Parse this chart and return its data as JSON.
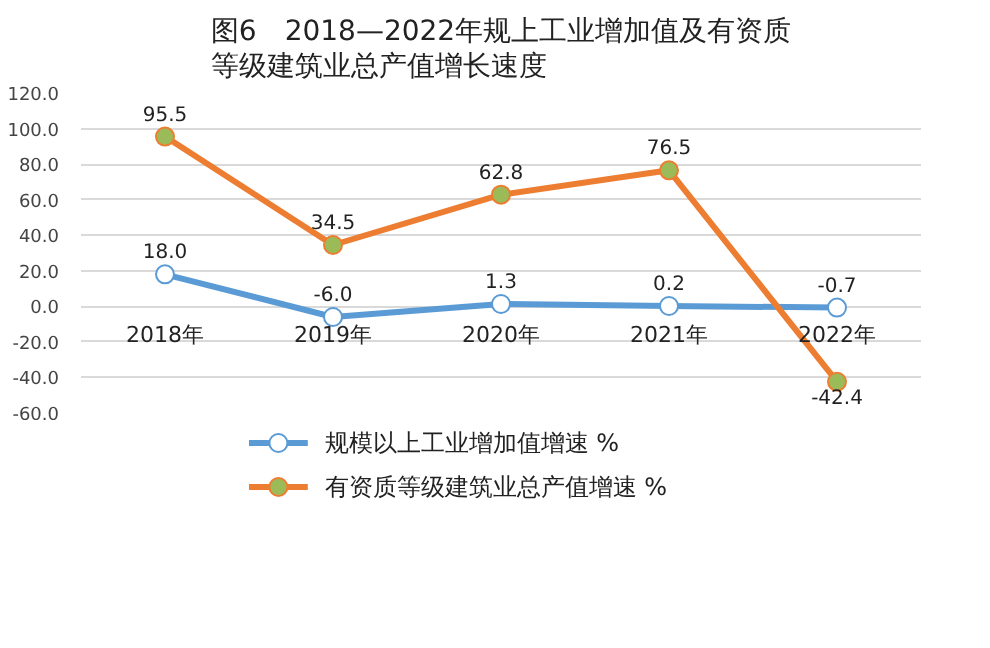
{
  "chart_data": {
    "type": "line",
    "title": "图6　2018—2022年规上工业增加值及有资质等级建筑业总产值增长速度",
    "categories": [
      "2018年",
      "2019年",
      "2020年",
      "2021年",
      "2022年"
    ],
    "series": [
      {
        "name": "规模以上工业增加值增速 %",
        "color": "#5b9bd5",
        "values": [
          18.0,
          -6.0,
          1.3,
          0.2,
          -0.7
        ],
        "value_labels": [
          "18.0",
          "-6.0",
          "1.3",
          "0.2",
          "-0.7"
        ]
      },
      {
        "name": "有资质等级建筑业总产值增速 %",
        "color": "#ed7d31",
        "values": [
          95.5,
          34.5,
          62.8,
          76.5,
          -42.4
        ],
        "value_labels": [
          "95.5",
          "34.5",
          "62.8",
          "76.5",
          "-42.4"
        ]
      }
    ],
    "ylim": [
      -60,
      120
    ],
    "yticks": [
      {
        "value": -60,
        "label": "-60.0"
      },
      {
        "value": -40,
        "label": "-40.0"
      },
      {
        "value": -20,
        "label": "-20.0"
      },
      {
        "value": 0,
        "label": "0.0"
      },
      {
        "value": 20,
        "label": "20.0"
      },
      {
        "value": 40,
        "label": "40.0"
      },
      {
        "value": 60,
        "label": "60.0"
      },
      {
        "value": 80,
        "label": "80.0"
      },
      {
        "value": 100,
        "label": "100.0"
      },
      {
        "value": 120,
        "label": "120.0"
      }
    ],
    "grid": "y",
    "legend": "bottom",
    "marker": "circle",
    "line_style": "solid"
  }
}
